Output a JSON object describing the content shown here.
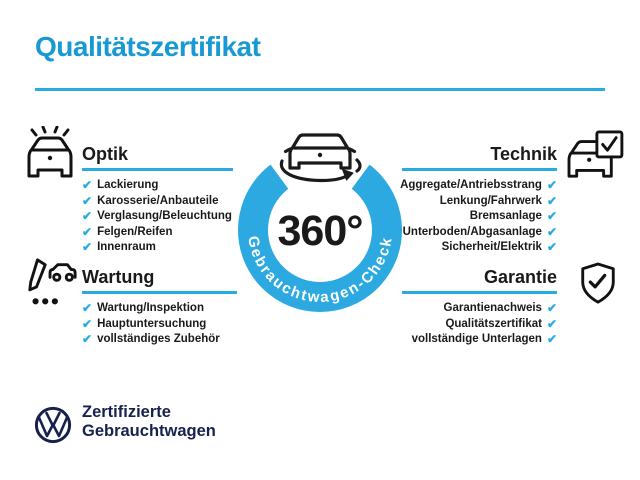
{
  "page": {
    "title": "Qualitätszertifikat"
  },
  "colors": {
    "accent_blue": "#29abe2",
    "title_blue": "#1899d3",
    "ring_blue": "#2ba9e0",
    "navy": "#16214d",
    "text_black": "#1a1a1a"
  },
  "check_glyph": "✔",
  "badge": {
    "degree_label": "360°",
    "ring_label": "Gebrauchtwagen-Check",
    "center_icon": "car-rotation-icon"
  },
  "sections": [
    {
      "id": "optik",
      "title": "Optik",
      "align": "left",
      "icon": "car-shine-icon",
      "items": [
        "Lackierung",
        "Karosserie/Anbauteile",
        "Verglasung/Beleuchtung",
        "Felgen/Reifen",
        "Innenraum"
      ]
    },
    {
      "id": "technik",
      "title": "Technik",
      "align": "right",
      "icon": "car-checkbox-icon",
      "items": [
        "Aggregate/Antriebsstrang",
        "Lenkung/Fahrwerk",
        "Bremsanlage",
        "Unterboden/Abgasanlage",
        "Sicherheit/Elektrik"
      ]
    },
    {
      "id": "wartung",
      "title": "Wartung",
      "align": "left",
      "icon": "service-checklist-icon",
      "items": [
        "Wartung/Inspektion",
        "Hauptuntersuchung",
        "vollständiges Zubehör"
      ]
    },
    {
      "id": "garantie",
      "title": "Garantie",
      "align": "right",
      "icon": "shield-check-icon",
      "items": [
        "Garantienachweis",
        "Qualitätszertifikat",
        "vollständige Unterlagen"
      ]
    }
  ],
  "footer": {
    "logo": "vw-logo",
    "brand_line1": "Zertifizierte",
    "brand_line2": "Gebrauchtwagen"
  }
}
